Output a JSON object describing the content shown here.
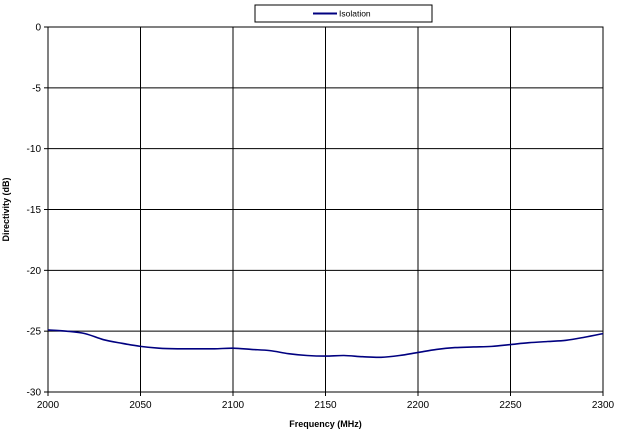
{
  "chart_data": {
    "type": "line",
    "xlabel": "Frequency (MHz)",
    "ylabel": "Directivity (dB)",
    "xlim": [
      2000,
      2300
    ],
    "ylim": [
      -30,
      0
    ],
    "xticks": [
      2000,
      2050,
      2100,
      2150,
      2200,
      2250,
      2300
    ],
    "yticks": [
      0,
      -5,
      -10,
      -15,
      -20,
      -25,
      -30
    ],
    "grid": true,
    "legend_position": "top",
    "series": [
      {
        "name": "Isolation",
        "color": "#000080",
        "x": [
          2000,
          2010,
          2020,
          2030,
          2040,
          2050,
          2060,
          2070,
          2080,
          2090,
          2100,
          2110,
          2120,
          2130,
          2140,
          2150,
          2160,
          2170,
          2180,
          2190,
          2200,
          2210,
          2220,
          2230,
          2240,
          2250,
          2260,
          2270,
          2280,
          2290,
          2300
        ],
        "y": [
          -24.9,
          -25.0,
          -25.2,
          -25.7,
          -26.0,
          -26.25,
          -26.4,
          -26.45,
          -26.45,
          -26.45,
          -26.4,
          -26.5,
          -26.6,
          -26.85,
          -27.0,
          -27.05,
          -27.0,
          -27.1,
          -27.15,
          -27.0,
          -26.75,
          -26.5,
          -26.35,
          -26.3,
          -26.25,
          -26.1,
          -25.95,
          -25.85,
          -25.75,
          -25.5,
          -25.2
        ]
      }
    ]
  }
}
